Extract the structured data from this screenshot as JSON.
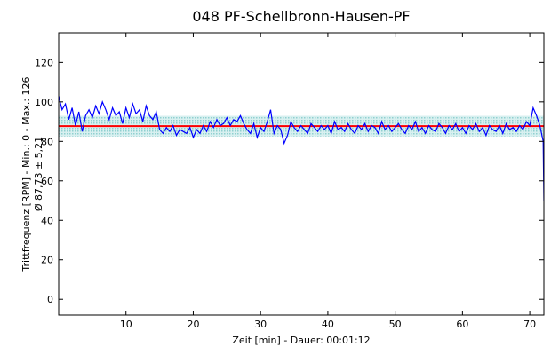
{
  "chart_data": {
    "type": "line",
    "title": "048 PF-Schellbronn-Hausen-PF",
    "x_label": "Zeit [min] - Dauer: 00:01:12",
    "y_label": [
      "Trittfrequenz [RPM] - Min.: 0 - Max.: 126",
      "Ø 87,73 ± 5,21"
    ],
    "color": "#0000ff",
    "mean_line": 87.73,
    "mean_color": "#ff0000",
    "band": [
      82.52,
      92.94
    ],
    "band_color": "#8fd0d0",
    "xlim": [
      0,
      72.1
    ],
    "ylim": [
      -8,
      135
    ],
    "xticks": [
      10,
      20,
      30,
      40,
      50,
      60,
      70
    ],
    "yticks": [
      0,
      20,
      40,
      60,
      80,
      100,
      120
    ],
    "x": [
      0,
      0.5,
      1,
      1.5,
      2,
      2.5,
      3,
      3.5,
      4,
      4.5,
      5,
      5.5,
      6,
      6.5,
      7,
      7.5,
      8,
      8.5,
      9,
      9.5,
      10,
      10.5,
      11,
      11.5,
      12,
      12.5,
      13,
      13.5,
      14,
      14.5,
      15,
      15.5,
      16,
      16.5,
      17,
      17.5,
      18,
      18.5,
      19,
      19.5,
      20,
      20.5,
      21,
      21.5,
      22,
      22.5,
      23,
      23.5,
      24,
      24.5,
      25,
      25.5,
      26,
      26.5,
      27,
      27.5,
      28,
      28.5,
      29,
      29.5,
      30,
      30.5,
      31,
      31.5,
      32,
      32.5,
      33,
      33.5,
      34,
      34.5,
      35,
      35.5,
      36,
      36.5,
      37,
      37.5,
      38,
      38.5,
      39,
      39.5,
      40,
      40.5,
      41,
      41.5,
      42,
      42.5,
      43,
      43.5,
      44,
      44.5,
      45,
      45.5,
      46,
      46.5,
      47,
      47.5,
      48,
      48.5,
      49,
      49.5,
      50,
      50.5,
      51,
      51.5,
      52,
      52.5,
      53,
      53.5,
      54,
      54.5,
      55,
      55.5,
      56,
      56.5,
      57,
      57.5,
      58,
      58.5,
      59,
      59.5,
      60,
      60.5,
      61,
      61.5,
      62,
      62.5,
      63,
      63.5,
      64,
      64.5,
      65,
      65.5,
      66,
      66.5,
      67,
      67.5,
      68,
      68.5,
      69,
      69.5,
      70,
      70.5,
      71,
      71.5,
      72,
      72.1
    ],
    "values": [
      103,
      96,
      99,
      91,
      97,
      88,
      95,
      85,
      93,
      96,
      92,
      98,
      94,
      100,
      96,
      91,
      97,
      93,
      95,
      89,
      97,
      92,
      99,
      94,
      96,
      90,
      98,
      93,
      91,
      95,
      86,
      84,
      87,
      85,
      88,
      83,
      86,
      85,
      84,
      87,
      82,
      86,
      84,
      88,
      85,
      90,
      87,
      91,
      88,
      89,
      92,
      88,
      91,
      90,
      93,
      89,
      86,
      84,
      89,
      82,
      87,
      85,
      90,
      96,
      84,
      88,
      86,
      79,
      83,
      90,
      87,
      85,
      88,
      86,
      84,
      89,
      87,
      85,
      88,
      86,
      88,
      84,
      90,
      86,
      87,
      85,
      89,
      86,
      84,
      88,
      86,
      89,
      85,
      88,
      87,
      84,
      90,
      86,
      88,
      85,
      87,
      89,
      86,
      84,
      88,
      86,
      90,
      85,
      87,
      84,
      88,
      86,
      85,
      89,
      87,
      84,
      88,
      86,
      89,
      85,
      87,
      84,
      88,
      86,
      89,
      85,
      87,
      83,
      88,
      86,
      85,
      88,
      84,
      89,
      86,
      87,
      85,
      88,
      86,
      90,
      88,
      97,
      93,
      88,
      80,
      50
    ]
  }
}
